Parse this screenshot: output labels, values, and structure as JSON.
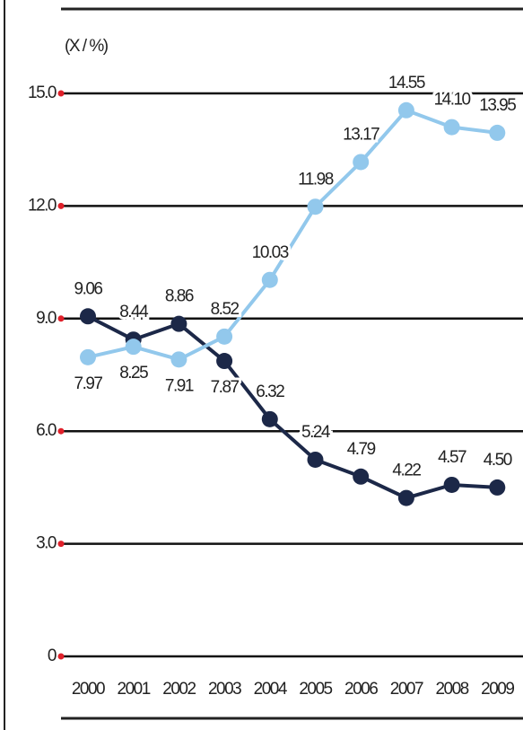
{
  "chart_data": {
    "type": "line",
    "y_label": "(X / %)",
    "categories": [
      "2000",
      "2001",
      "2002",
      "2003",
      "2004",
      "2005",
      "2006",
      "2007",
      "2008",
      "2009"
    ],
    "series": [
      {
        "color": "#1c2848",
        "values": [
          9.06,
          8.44,
          8.86,
          7.87,
          6.32,
          5.24,
          4.79,
          4.22,
          4.57,
          4.5
        ],
        "value_labels": [
          "9.06",
          "8.44",
          "8.86",
          "7.87",
          "6.32",
          "5.24",
          "4.79",
          "4.22",
          "4.57",
          "4.50"
        ]
      },
      {
        "color": "#92c8ec",
        "values": [
          7.97,
          8.25,
          7.91,
          8.52,
          10.03,
          11.98,
          13.17,
          14.55,
          14.1,
          13.95
        ],
        "value_labels": [
          "7.97",
          "8.25",
          "7.91",
          "8.52",
          "10.03",
          "11.98",
          "13.17",
          "14.55",
          "14.10",
          "13.95"
        ]
      }
    ],
    "ylim": [
      0,
      15
    ],
    "yticks": [
      0,
      {
        "value": 3,
        "label": "3.0"
      },
      {
        "value": 6,
        "label": "6.0"
      },
      {
        "value": 9,
        "label": "9.0"
      },
      {
        "value": 12,
        "label": "12.0"
      },
      {
        "value": 15,
        "label": "15.0"
      }
    ],
    "grid": true
  }
}
